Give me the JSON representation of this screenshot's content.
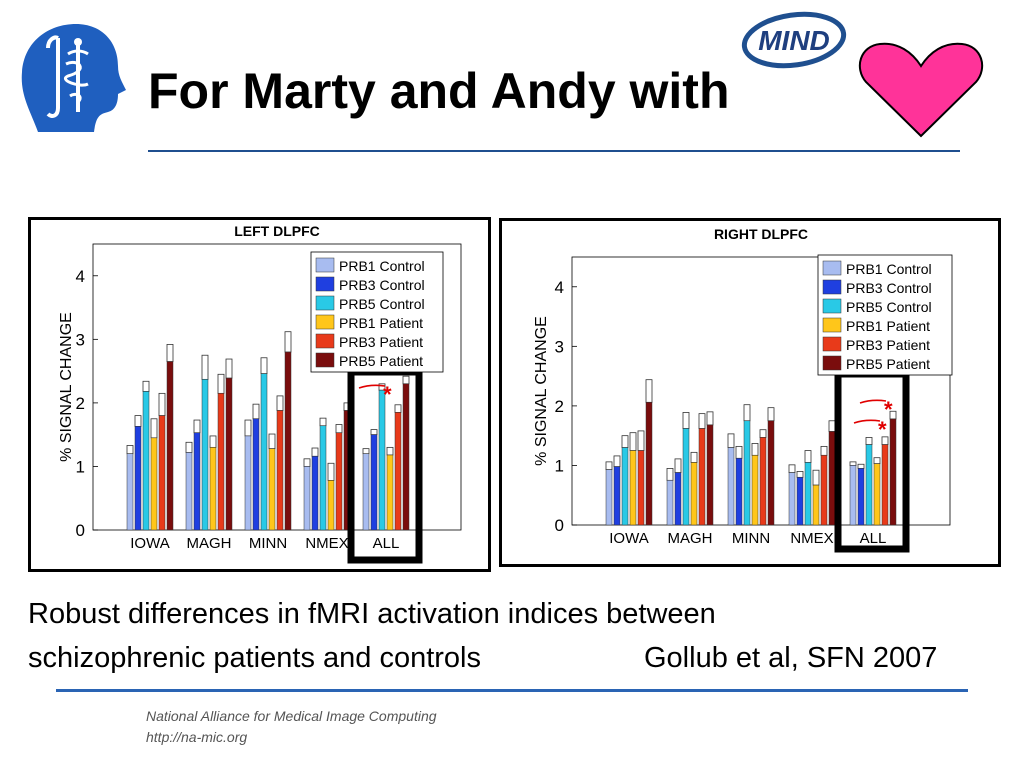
{
  "slide": {
    "title": "For Marty and Andy with",
    "logo_text": "MIND",
    "caption_line1": "Robust differences in fMRI activation indices between",
    "caption_line2": "schizophrenic patients and controls",
    "citation": "Gollub et al, SFN 2007",
    "footer_org": "National Alliance for Medical Image Computing",
    "footer_url": "http://na-mic.org"
  },
  "colors": {
    "accent_rule": "#2a64b4",
    "heart": "#ff3399",
    "highlight_box": "#000000",
    "significance": "#e00000"
  },
  "icons": [
    "slicer-head-logo",
    "mind-logo",
    "heart-icon"
  ],
  "chart_data": [
    {
      "type": "bar",
      "title": "LEFT DLPFC",
      "ylabel": "% SIGNAL CHANGE",
      "xlabel": "",
      "ylim": [
        0,
        4.5
      ],
      "yticks": [
        0,
        1,
        2,
        3,
        4
      ],
      "categories": [
        "IOWA",
        "MAGH",
        "MINN",
        "NMEX",
        "ALL"
      ],
      "legend_position": "top-right",
      "highlight_category": "ALL",
      "significance_marks": [
        "*"
      ],
      "series": [
        {
          "name": "PRB1 Control",
          "color": "#a8bcf0",
          "values": [
            1.2,
            1.22,
            1.48,
            1.0,
            1.2
          ],
          "errors": [
            0.13,
            0.16,
            0.25,
            0.12,
            0.08
          ]
        },
        {
          "name": "PRB3 Control",
          "color": "#1f3fe0",
          "values": [
            1.63,
            1.53,
            1.75,
            1.16,
            1.5
          ],
          "errors": [
            0.17,
            0.2,
            0.23,
            0.13,
            0.08
          ]
        },
        {
          "name": "PRB5 Control",
          "color": "#29c9e6",
          "values": [
            2.18,
            2.37,
            2.46,
            1.64,
            2.2
          ],
          "errors": [
            0.16,
            0.38,
            0.25,
            0.12,
            0.1
          ]
        },
        {
          "name": "PRB1 Patient",
          "color": "#ffc61a",
          "values": [
            1.45,
            1.3,
            1.28,
            0.78,
            1.18
          ],
          "errors": [
            0.3,
            0.18,
            0.23,
            0.27,
            0.12
          ]
        },
        {
          "name": "PRB3 Patient",
          "color": "#e83a1a",
          "values": [
            1.8,
            2.15,
            1.88,
            1.53,
            1.85
          ],
          "errors": [
            0.35,
            0.3,
            0.23,
            0.13,
            0.12
          ]
        },
        {
          "name": "PRB5 Patient",
          "color": "#7a0d0d",
          "values": [
            2.65,
            2.39,
            2.8,
            1.88,
            2.3
          ],
          "errors": [
            0.27,
            0.3,
            0.32,
            0.12,
            0.12
          ]
        }
      ]
    },
    {
      "type": "bar",
      "title": "RIGHT DLPFC",
      "ylabel": "% SIGNAL CHANGE",
      "xlabel": "",
      "ylim": [
        0,
        4.5
      ],
      "yticks": [
        0,
        1,
        2,
        3,
        4
      ],
      "categories": [
        "IOWA",
        "MAGH",
        "MINN",
        "NMEX",
        "ALL"
      ],
      "legend_position": "top-right",
      "highlight_category": "ALL",
      "significance_marks": [
        "*",
        "*"
      ],
      "series": [
        {
          "name": "PRB1 Control",
          "color": "#a8bcf0",
          "values": [
            0.93,
            0.75,
            1.3,
            0.88,
            1.0
          ],
          "errors": [
            0.13,
            0.2,
            0.23,
            0.13,
            0.06
          ]
        },
        {
          "name": "PRB3 Control",
          "color": "#1f3fe0",
          "values": [
            0.98,
            0.88,
            1.12,
            0.8,
            0.95
          ],
          "errors": [
            0.18,
            0.23,
            0.2,
            0.1,
            0.07
          ]
        },
        {
          "name": "PRB5 Control",
          "color": "#29c9e6",
          "values": [
            1.3,
            1.62,
            1.75,
            1.05,
            1.35
          ],
          "errors": [
            0.2,
            0.27,
            0.27,
            0.2,
            0.12
          ]
        },
        {
          "name": "PRB1 Patient",
          "color": "#ffc61a",
          "values": [
            1.25,
            1.05,
            1.17,
            0.67,
            1.03
          ],
          "errors": [
            0.3,
            0.17,
            0.2,
            0.25,
            0.1
          ]
        },
        {
          "name": "PRB3 Patient",
          "color": "#e83a1a",
          "values": [
            1.25,
            1.62,
            1.47,
            1.17,
            1.35
          ],
          "errors": [
            0.33,
            0.25,
            0.13,
            0.15,
            0.13
          ]
        },
        {
          "name": "PRB5 Patient",
          "color": "#7a0d0d",
          "values": [
            2.06,
            1.68,
            1.75,
            1.57,
            1.78
          ],
          "errors": [
            0.38,
            0.22,
            0.22,
            0.18,
            0.13
          ]
        }
      ]
    }
  ]
}
